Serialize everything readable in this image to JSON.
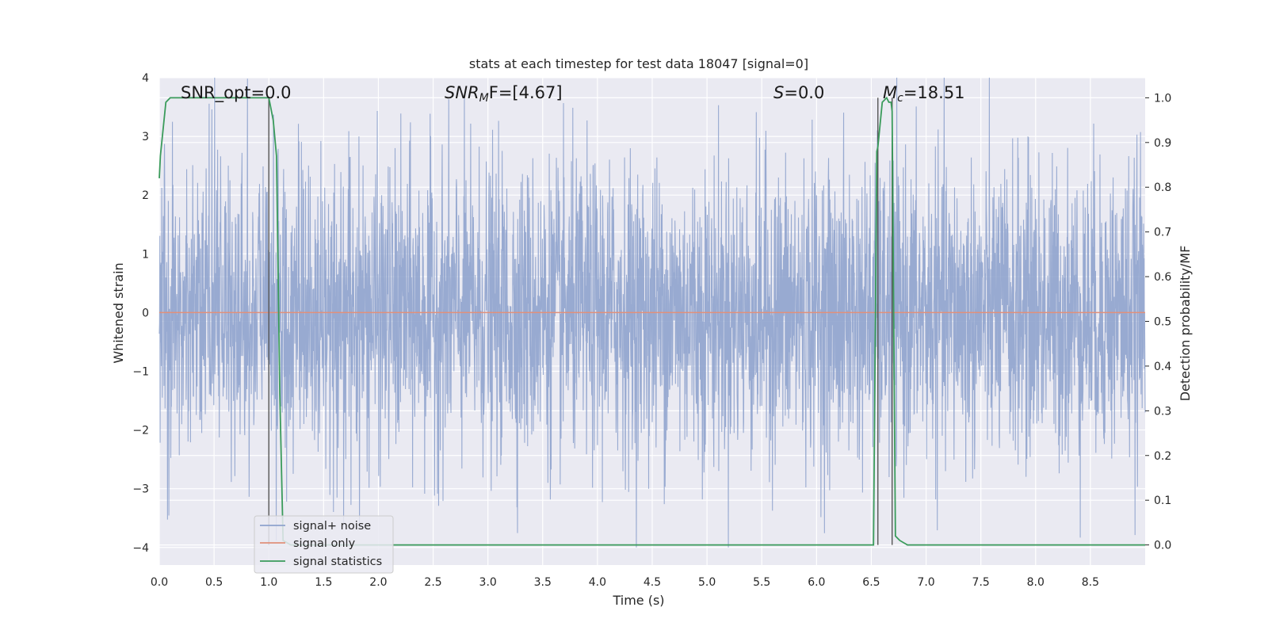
{
  "chart_data": {
    "type": "line",
    "title": "stats at each timestep for test data 18047 [signal=0]",
    "xlabel": "Time (s)",
    "ylabel": "Whitened strain",
    "y2label": "Detection probability/MF",
    "xlim": [
      0.0,
      9.0
    ],
    "ylim": [
      -4.3,
      4.0
    ],
    "y2lim": [
      -0.045,
      1.045
    ],
    "xticks": [
      "0.0",
      "0.5",
      "1.0",
      "1.5",
      "2.0",
      "2.5",
      "3.0",
      "3.5",
      "4.0",
      "4.5",
      "5.0",
      "5.5",
      "6.0",
      "6.5",
      "7.0",
      "7.5",
      "8.0",
      "8.5"
    ],
    "yticks": [
      "4",
      "3",
      "2",
      "1",
      "0",
      "−1",
      "−2",
      "−3",
      "−4"
    ],
    "y2ticks": [
      "1.0",
      "0.9",
      "0.8",
      "0.7",
      "0.6",
      "0.5",
      "0.4",
      "0.3",
      "0.2",
      "0.1",
      "0.0"
    ],
    "grid": true,
    "legend_position": "lower-left",
    "annotations": {
      "snr_opt": "SNR_opt=0.0",
      "snr_mf_sym": "SNR",
      "snr_mf_sub": "M",
      "snr_mf_rest": "F=[4.67]",
      "s_sym": "S",
      "s_rest": "=0.0",
      "mc_sym": "M",
      "mc_sub": "c",
      "mc_rest": "=18.51"
    },
    "vertical_markers_s": [
      1.0,
      6.56,
      6.69
    ],
    "series": [
      {
        "name": "signal+ noise",
        "color": "#8fa3cd",
        "noise_envelope": {
          "typical_amplitude": 1.6,
          "max_abs": 4.0
        }
      },
      {
        "name": "signal only",
        "color": "#e1907a",
        "x": [
          0.0,
          9.0
        ],
        "y": [
          0.0,
          0.0
        ]
      },
      {
        "name": "signal statistics",
        "color": "#3a9b5b",
        "axis": "right",
        "x": [
          0.0,
          0.01,
          0.06,
          0.1,
          0.5,
          0.99,
          1.0,
          1.04,
          1.07,
          1.1,
          1.13,
          1.2,
          2.0,
          6.0,
          6.52,
          6.55,
          6.56,
          6.6,
          6.64,
          6.66,
          6.68,
          6.69,
          6.72,
          6.76,
          6.83,
          6.95,
          7.0,
          8.0,
          9.0
        ],
        "y": [
          0.82,
          0.87,
          0.99,
          1.0,
          1.0,
          1.0,
          1.0,
          0.95,
          0.87,
          0.34,
          0.01,
          0.0,
          0.0,
          0.0,
          0.0,
          0.88,
          0.89,
          0.99,
          1.0,
          0.99,
          0.99,
          0.97,
          0.02,
          0.01,
          0.0,
          0.0,
          0.0,
          0.0,
          0.0
        ]
      }
    ]
  },
  "colors": {
    "plot_background": "#eaeaf2",
    "grid": "#ffffff",
    "marker_line": "#555555"
  }
}
